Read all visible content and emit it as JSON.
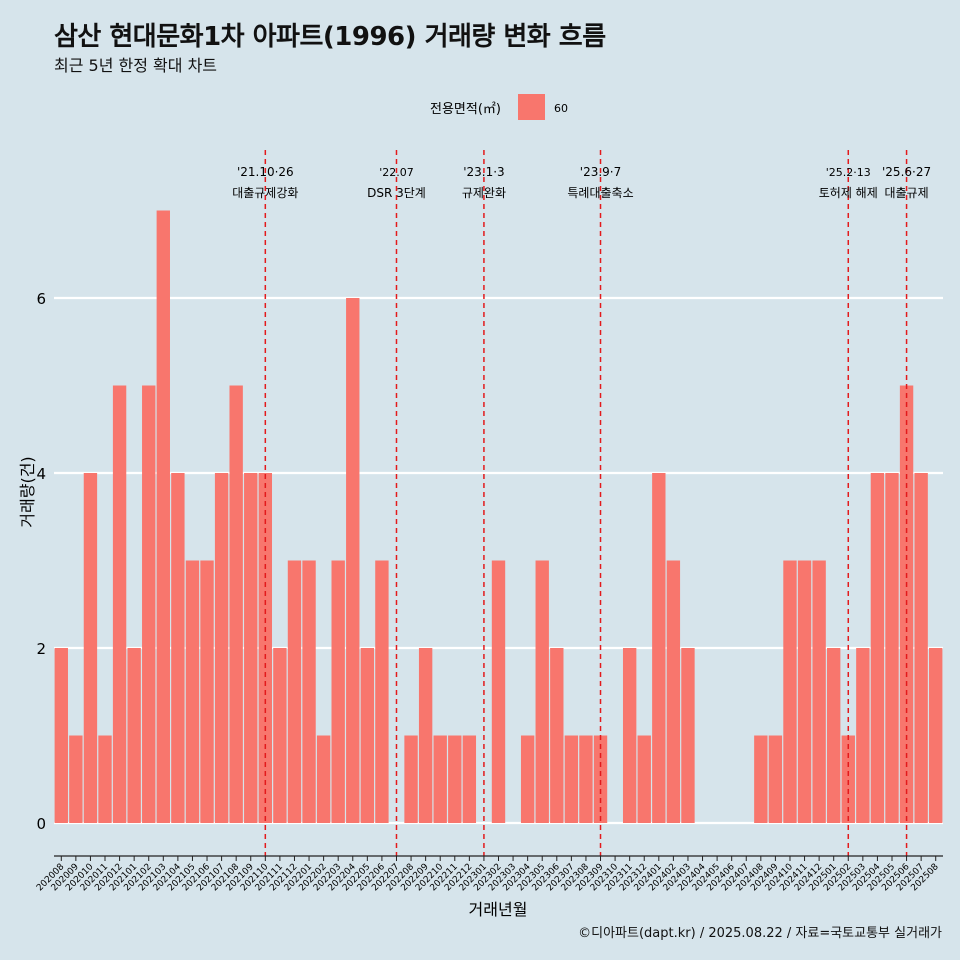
{
  "title": "삼산 현대문화1차 아파트(1996) 거래량 변화 흐름",
  "subtitle": "최근 5년 한정 확대 차트",
  "caption": "©디아파트(dapt.kr) / 2025.08.22 / 자료=국토교통부 실거래가",
  "colors": {
    "background": "#d6e4eb",
    "bar": "#f8766d",
    "grid": "#ffffff",
    "vline": "#e31a1c"
  },
  "chart_data": {
    "type": "bar",
    "xlabel": "거래년월",
    "ylabel": "거래량(건)",
    "ylim": [
      -0.4,
      7.4
    ],
    "yticks": [
      0,
      2,
      4,
      6
    ],
    "legend": {
      "title": "전용면적(㎡)",
      "entries": [
        "60"
      ],
      "position": "top"
    },
    "categories": [
      "202008",
      "202009",
      "202010",
      "202011",
      "202012",
      "202101",
      "202102",
      "202103",
      "202104",
      "202105",
      "202106",
      "202107",
      "202108",
      "202109",
      "202110",
      "202111",
      "202112",
      "202201",
      "202202",
      "202203",
      "202204",
      "202205",
      "202206",
      "202207",
      "202208",
      "202209",
      "202210",
      "202211",
      "202212",
      "202301",
      "202302",
      "202303",
      "202304",
      "202305",
      "202306",
      "202307",
      "202308",
      "202309",
      "202310",
      "202311",
      "202312",
      "202401",
      "202402",
      "202403",
      "202404",
      "202405",
      "202406",
      "202407",
      "202408",
      "202409",
      "202410",
      "202411",
      "202412",
      "202501",
      "202502",
      "202503",
      "202504",
      "202505",
      "202506",
      "202507",
      "202508"
    ],
    "series": [
      {
        "name": "60",
        "values": [
          2,
          1,
          4,
          1,
          5,
          2,
          5,
          7,
          4,
          3,
          3,
          4,
          5,
          4,
          4,
          2,
          3,
          3,
          1,
          3,
          6,
          2,
          3,
          0,
          1,
          2,
          1,
          1,
          1,
          0,
          3,
          0,
          1,
          3,
          2,
          1,
          1,
          1,
          0,
          2,
          1,
          4,
          3,
          2,
          0,
          0,
          0,
          0,
          1,
          1,
          3,
          3,
          3,
          2,
          1,
          2,
          4,
          4,
          5,
          4,
          2
        ]
      }
    ],
    "annotations": [
      {
        "x": "202110",
        "date": "'21.10·26",
        "label": "대출규제강화"
      },
      {
        "x": "202207",
        "date": "'22.07",
        "label": "DSR 3단계"
      },
      {
        "x": "202301",
        "date": "'23.1·3",
        "label": "규제완화"
      },
      {
        "x": "202309",
        "date": "'23.9·7",
        "label": "특례대출축소"
      },
      {
        "x": "202502",
        "date": "'25.2·13",
        "label": "토허제 해제"
      },
      {
        "x": "202506",
        "date": "'25.6·27",
        "label": "대출규제"
      }
    ]
  }
}
